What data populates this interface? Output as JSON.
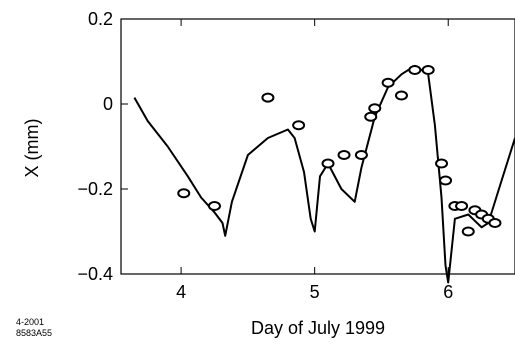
{
  "chart_data": {
    "type": "line",
    "title": "",
    "xlabel": "Day of July 1999",
    "ylabel": "X  (mm)",
    "xlim": [
      3.55,
      6.5
    ],
    "ylim": [
      -0.4,
      0.2
    ],
    "x_ticks": [
      4,
      5,
      6
    ],
    "x_tick_labels": [
      "4",
      "5",
      "6"
    ],
    "y_ticks": [
      -0.4,
      -0.2,
      0,
      0.2
    ],
    "y_tick_labels": [
      "−0.4",
      "−0.2",
      "0",
      "0.2"
    ],
    "grid": false,
    "legend": "none",
    "series": [
      {
        "style": "line",
        "x": [
          3.65,
          3.75,
          3.9,
          4.05,
          4.15,
          4.25,
          4.31,
          4.33,
          4.38,
          4.5,
          4.65,
          4.8,
          4.85,
          4.92,
          4.97,
          5.0,
          5.04,
          5.1,
          5.2,
          5.3,
          5.35,
          5.45,
          5.55,
          5.65,
          5.75,
          5.85,
          5.9,
          5.95,
          5.98,
          6.0,
          6.05,
          6.15,
          6.25,
          6.3,
          6.4,
          6.5
        ],
        "y": [
          0.015,
          -0.04,
          -0.1,
          -0.17,
          -0.22,
          -0.255,
          -0.28,
          -0.31,
          -0.23,
          -0.12,
          -0.08,
          -0.06,
          -0.08,
          -0.16,
          -0.27,
          -0.3,
          -0.17,
          -0.14,
          -0.2,
          -0.23,
          -0.15,
          -0.03,
          0.04,
          0.07,
          0.09,
          0.07,
          -0.05,
          -0.22,
          -0.38,
          -0.42,
          -0.27,
          -0.26,
          -0.29,
          -0.28,
          -0.18,
          -0.08
        ]
      },
      {
        "style": "markers",
        "marker": "open-circle",
        "x": [
          4.02,
          4.25,
          4.65,
          4.88,
          5.1,
          5.22,
          5.35,
          5.42,
          5.45,
          5.55,
          5.65,
          5.75,
          5.85,
          5.95,
          5.98,
          6.05,
          6.1,
          6.15,
          6.2,
          6.25,
          6.3,
          6.35
        ],
        "y": [
          -0.21,
          -0.24,
          0.015,
          -0.05,
          -0.14,
          -0.12,
          -0.12,
          -0.03,
          -0.01,
          0.05,
          0.02,
          0.08,
          0.08,
          -0.14,
          -0.18,
          -0.24,
          -0.24,
          -0.3,
          -0.25,
          -0.26,
          -0.27,
          -0.28
        ]
      }
    ]
  },
  "stamp": {
    "line1": "4-2001",
    "line2": "8583A55"
  }
}
